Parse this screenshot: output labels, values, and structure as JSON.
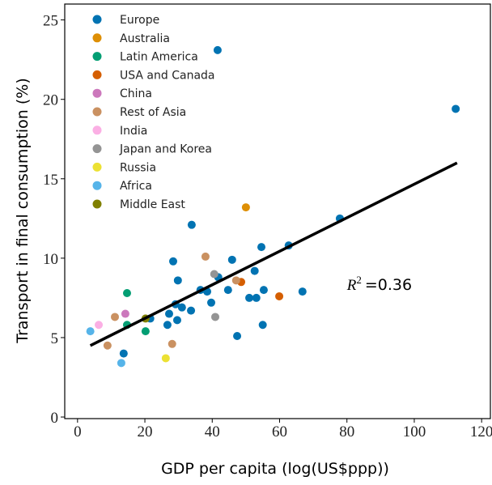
{
  "chart_data": {
    "type": "scatter",
    "x_label": "GDP per capita (log(US$ppp))",
    "y_label": "Transport in final consumption (%)",
    "xlim": [
      -3.8,
      122.6
    ],
    "ylim": [
      -0.1,
      26
    ],
    "xticks": [
      0,
      20,
      40,
      60,
      80,
      100,
      120
    ],
    "yticks": [
      0,
      5,
      10,
      15,
      20,
      25
    ],
    "legend": "upper left",
    "series": [
      {
        "name": "Europe",
        "color": "#0173b2",
        "x": [
          41.6,
          112.3,
          77.9,
          33.9,
          62.7,
          54.6,
          45.9,
          28.4,
          52.6,
          29.8,
          41.8,
          44.7,
          36.5,
          38.5,
          55.3,
          66.8,
          51.0,
          53.1,
          39.7,
          29.1,
          31.0,
          33.7,
          27.2,
          21.6,
          29.6,
          26.7,
          55.0,
          47.4,
          13.7
        ],
        "y": [
          23.1,
          19.4,
          12.5,
          12.1,
          10.8,
          10.7,
          9.9,
          9.8,
          9.2,
          8.6,
          8.8,
          8.0,
          8.0,
          7.9,
          8.0,
          7.9,
          7.5,
          7.5,
          7.2,
          7.1,
          6.9,
          6.7,
          6.5,
          6.2,
          6.1,
          5.8,
          5.8,
          5.1,
          4.0
        ]
      },
      {
        "name": "Australia",
        "color": "#de8f05",
        "x": [
          50.0
        ],
        "y": [
          13.2
        ]
      },
      {
        "name": "Latin America",
        "color": "#029e73",
        "x": [
          14.7,
          14.7,
          20.2
        ],
        "y": [
          7.8,
          5.8,
          5.4
        ]
      },
      {
        "name": "USA and Canada",
        "color": "#d55e00",
        "x": [
          48.6,
          59.9
        ],
        "y": [
          8.5,
          7.6
        ]
      },
      {
        "name": "China",
        "color": "#cc78bc",
        "x": [
          14.2
        ],
        "y": [
          6.5
        ]
      },
      {
        "name": "Rest of Asia",
        "color": "#ca9161",
        "x": [
          38.0,
          47.1,
          11.1,
          8.9,
          28.1
        ],
        "y": [
          10.1,
          8.6,
          6.3,
          4.5,
          4.6
        ]
      },
      {
        "name": "India",
        "color": "#fbafe4",
        "x": [
          6.3
        ],
        "y": [
          5.8
        ]
      },
      {
        "name": "Japan and Korea",
        "color": "#949494",
        "x": [
          40.6,
          40.9
        ],
        "y": [
          9.0,
          6.3
        ]
      },
      {
        "name": "Russia",
        "color": "#ece133",
        "x": [
          26.2
        ],
        "y": [
          3.7
        ]
      },
      {
        "name": "Africa",
        "color": "#56b4e9",
        "x": [
          3.8,
          13.0
        ],
        "y": [
          5.4,
          3.4
        ]
      },
      {
        "name": "Middle East",
        "color": "#808000",
        "x": [
          20.2
        ],
        "y": [
          6.2
        ]
      }
    ],
    "regression_line": {
      "color": "#000000",
      "x": [
        3.8,
        112.7
      ],
      "y": [
        4.5,
        16.0
      ]
    },
    "annotation": {
      "symbol": "R",
      "exponent": "2",
      "value_text": "=0.36",
      "x": 80,
      "y": 8
    }
  }
}
